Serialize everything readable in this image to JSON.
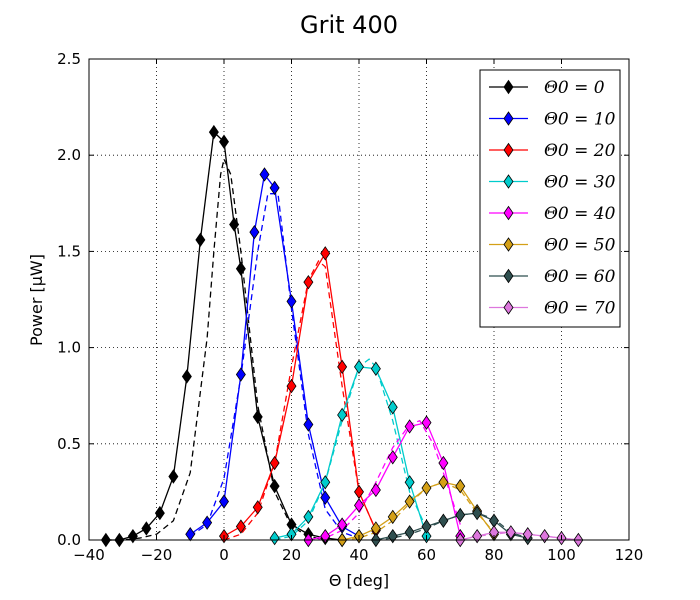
{
  "chart_data": {
    "type": "line",
    "title": "Grit 400",
    "xlabel": "Θ [deg]",
    "ylabel": "Power [μW]",
    "xlim": [
      -40,
      120
    ],
    "ylim": [
      0,
      2.5
    ],
    "xticks": [
      -40,
      -20,
      0,
      20,
      40,
      60,
      80,
      100,
      120
    ],
    "xtick_labels": [
      "−40",
      "−20",
      "0",
      "20",
      "40",
      "60",
      "80",
      "100",
      "120"
    ],
    "yticks": [
      0.0,
      0.5,
      1.0,
      1.5,
      2.0,
      2.5
    ],
    "ytick_labels": [
      "0.0",
      "0.5",
      "1.0",
      "1.5",
      "2.0",
      "2.5"
    ],
    "grid": true,
    "legend_position": "top-right",
    "series": [
      {
        "name": "Θ0 = 0",
        "color": "#000000",
        "marker": "diamond",
        "x": [
          -35,
          -31,
          -27,
          -23,
          -19,
          -15,
          -11,
          -7,
          -3,
          0,
          3,
          5,
          10,
          15,
          20,
          25,
          30,
          35
        ],
        "y": [
          0.0,
          0.0,
          0.02,
          0.06,
          0.14,
          0.33,
          0.85,
          1.56,
          2.12,
          2.07,
          1.64,
          1.41,
          0.64,
          0.28,
          0.08,
          0.03,
          0.01,
          0.0
        ],
        "fit_x": [
          -35,
          -30,
          -25,
          -20,
          -15,
          -10,
          -5,
          -3,
          -1,
          0,
          2,
          5,
          10,
          15,
          20,
          25,
          30
        ],
        "fit_y": [
          0.0,
          0.0,
          0.01,
          0.03,
          0.1,
          0.35,
          1.05,
          1.5,
          1.9,
          1.98,
          1.9,
          1.5,
          0.7,
          0.25,
          0.07,
          0.02,
          0.0
        ]
      },
      {
        "name": "Θ0 = 10",
        "color": "#0000ff",
        "marker": "diamond",
        "x": [
          -10,
          -5,
          0,
          5,
          9,
          12,
          15,
          20,
          25,
          30,
          35,
          40
        ],
        "y": [
          0.03,
          0.09,
          0.2,
          0.86,
          1.6,
          1.9,
          1.83,
          1.24,
          0.6,
          0.22,
          0.07,
          0.02
        ],
        "fit_x": [
          -10,
          -5,
          0,
          5,
          10,
          13,
          16,
          20,
          25,
          30,
          35,
          40
        ],
        "fit_y": [
          0.02,
          0.08,
          0.32,
          0.85,
          1.5,
          1.8,
          1.8,
          1.2,
          0.55,
          0.16,
          0.04,
          0.01
        ]
      },
      {
        "name": "Θ0 = 20",
        "color": "#ff0000",
        "marker": "diamond",
        "x": [
          0,
          5,
          10,
          15,
          20,
          25,
          30,
          35,
          40,
          45
        ],
        "y": [
          0.02,
          0.07,
          0.17,
          0.4,
          0.8,
          1.34,
          1.49,
          0.9,
          0.25,
          0.05
        ],
        "fit_x": [
          0,
          5,
          10,
          15,
          20,
          25,
          28,
          30,
          35,
          40,
          45
        ],
        "fit_y": [
          0.0,
          0.03,
          0.14,
          0.4,
          0.9,
          1.35,
          1.45,
          1.42,
          0.8,
          0.25,
          0.05
        ]
      },
      {
        "name": "Θ0 = 30",
        "color": "#00cccc",
        "marker": "diamond",
        "x": [
          15,
          20,
          25,
          30,
          35,
          40,
          45,
          50,
          55,
          60
        ],
        "y": [
          0.01,
          0.03,
          0.12,
          0.3,
          0.65,
          0.9,
          0.89,
          0.69,
          0.3,
          0.02
        ],
        "fit_x": [
          15,
          20,
          25,
          30,
          35,
          40,
          43,
          45,
          50,
          55,
          60
        ],
        "fit_y": [
          0.0,
          0.02,
          0.1,
          0.3,
          0.62,
          0.9,
          0.94,
          0.9,
          0.62,
          0.25,
          0.06
        ]
      },
      {
        "name": "Θ0 = 40",
        "color": "#ff00ff",
        "marker": "diamond",
        "x": [
          25,
          30,
          35,
          40,
          45,
          50,
          55,
          60,
          65,
          70
        ],
        "y": [
          0.0,
          0.02,
          0.08,
          0.18,
          0.26,
          0.43,
          0.59,
          0.61,
          0.4,
          0.02
        ],
        "fit_x": [
          25,
          30,
          35,
          40,
          45,
          50,
          55,
          58,
          62,
          65,
          70
        ],
        "fit_y": [
          0.0,
          0.01,
          0.05,
          0.14,
          0.3,
          0.48,
          0.6,
          0.62,
          0.5,
          0.35,
          0.08
        ]
      },
      {
        "name": "Θ0 = 50",
        "color": "#d4a017",
        "marker": "diamond",
        "x": [
          35,
          40,
          45,
          50,
          55,
          60,
          65,
          70,
          75,
          80
        ],
        "y": [
          0.0,
          0.02,
          0.06,
          0.12,
          0.2,
          0.27,
          0.3,
          0.28,
          0.15,
          0.03
        ],
        "fit_x": [
          35,
          40,
          45,
          50,
          55,
          60,
          65,
          70,
          75,
          80
        ],
        "fit_y": [
          0.0,
          0.01,
          0.04,
          0.1,
          0.19,
          0.27,
          0.3,
          0.26,
          0.14,
          0.04
        ]
      },
      {
        "name": "Θ0 = 60",
        "color": "#2f4f4f",
        "marker": "diamond",
        "x": [
          45,
          50,
          55,
          60,
          65,
          70,
          75,
          80,
          85,
          90
        ],
        "y": [
          0.0,
          0.02,
          0.04,
          0.07,
          0.1,
          0.13,
          0.14,
          0.1,
          0.03,
          0.01
        ],
        "fit_x": [
          45,
          50,
          55,
          60,
          65,
          70,
          75,
          80,
          85,
          90
        ],
        "fit_y": [
          0.0,
          0.01,
          0.03,
          0.06,
          0.1,
          0.13,
          0.14,
          0.11,
          0.04,
          0.01
        ]
      },
      {
        "name": "Θ0 = 70",
        "color": "#dd77dd",
        "marker": "diamond",
        "x": [
          70,
          75,
          80,
          85,
          90,
          95,
          100,
          105
        ],
        "y": [
          0.0,
          0.02,
          0.04,
          0.04,
          0.03,
          0.02,
          0.01,
          0.0
        ],
        "fit_x": [
          70,
          75,
          80,
          85,
          90,
          95,
          100,
          105
        ],
        "fit_y": [
          0.0,
          0.02,
          0.03,
          0.04,
          0.03,
          0.02,
          0.01,
          0.0
        ]
      }
    ]
  }
}
